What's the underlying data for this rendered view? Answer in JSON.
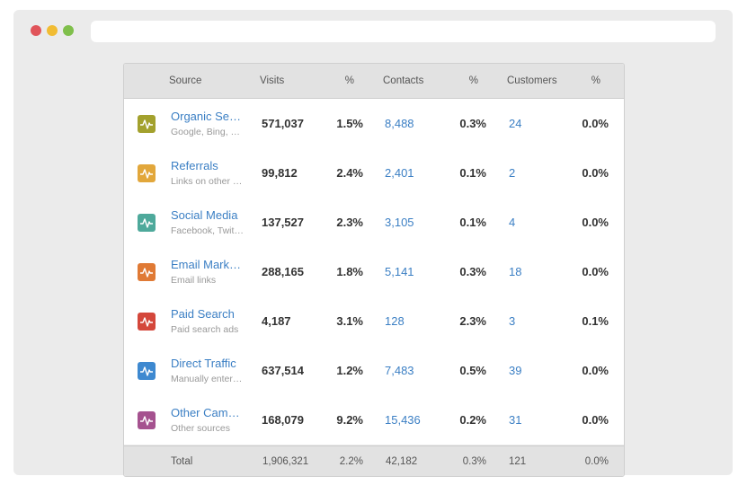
{
  "table": {
    "headers": {
      "source": "Source",
      "visits": "Visits",
      "visits_pct": "%",
      "contacts": "Contacts",
      "contacts_pct": "%",
      "customers": "Customers",
      "customers_pct": "%"
    },
    "rows": [
      {
        "name": "Organic Search",
        "sub": "Google, Bing, and others",
        "visits": "571,037",
        "visits_pct": "1.5%",
        "contacts": "8,488",
        "contacts_pct": "0.3%",
        "customers": "24",
        "customers_pct": "0.0%",
        "color": "#a3a12d",
        "icon": "activity-icon"
      },
      {
        "name": "Referrals",
        "sub": "Links on other sites",
        "visits": "99,812",
        "visits_pct": "2.4%",
        "contacts": "2,401",
        "contacts_pct": "0.1%",
        "customers": "2",
        "customers_pct": "0.0%",
        "color": "#e2a73b",
        "icon": "activity-icon"
      },
      {
        "name": "Social Media",
        "sub": "Facebook, Twitter, and others",
        "visits": "137,527",
        "visits_pct": "2.3%",
        "contacts": "3,105",
        "contacts_pct": "0.1%",
        "customers": "4",
        "customers_pct": "0.0%",
        "color": "#4ea99b",
        "icon": "activity-icon"
      },
      {
        "name": "Email Marketing",
        "sub": "Email links",
        "visits": "288,165",
        "visits_pct": "1.8%",
        "contacts": "5,141",
        "contacts_pct": "0.3%",
        "customers": "18",
        "customers_pct": "0.0%",
        "color": "#e07a35",
        "icon": "activity-icon"
      },
      {
        "name": "Paid Search",
        "sub": "Paid search ads",
        "visits": "4,187",
        "visits_pct": "3.1%",
        "contacts": "128",
        "contacts_pct": "2.3%",
        "customers": "3",
        "customers_pct": "0.1%",
        "color": "#d4473b",
        "icon": "activity-icon"
      },
      {
        "name": "Direct Traffic",
        "sub": "Manually entered URLs",
        "visits": "637,514",
        "visits_pct": "1.2%",
        "contacts": "7,483",
        "contacts_pct": "0.5%",
        "customers": "39",
        "customers_pct": "0.0%",
        "color": "#3e89d0",
        "icon": "activity-icon"
      },
      {
        "name": "Other Campaigns",
        "sub": "Other sources",
        "visits": "168,079",
        "visits_pct": "9.2%",
        "contacts": "15,436",
        "contacts_pct": "0.2%",
        "customers": "31",
        "customers_pct": "0.0%",
        "color": "#a5528f",
        "icon": "activity-icon"
      }
    ],
    "total": {
      "label": "Total",
      "visits": "1,906,321",
      "visits_pct": "2.2%",
      "contacts": "42,182",
      "contacts_pct": "0.3%",
      "customers": "121",
      "customers_pct": "0.0%"
    }
  }
}
